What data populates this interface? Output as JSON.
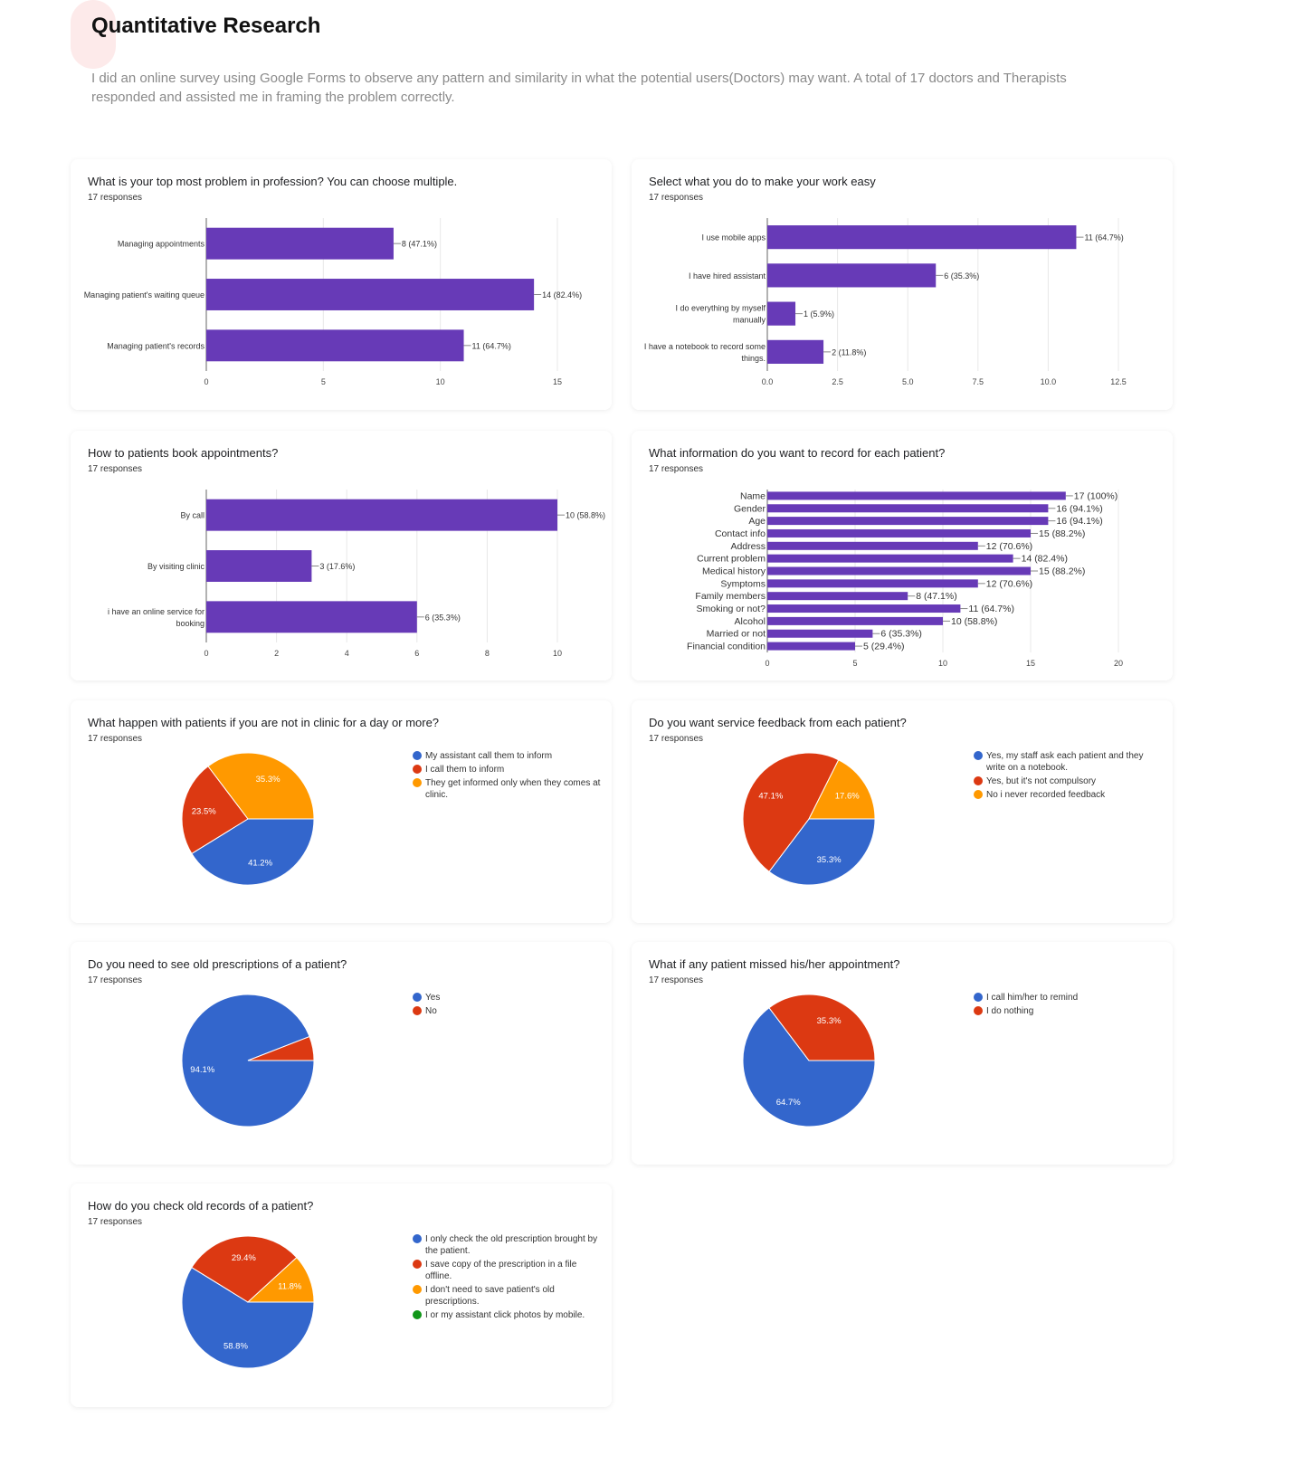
{
  "header": {
    "title": "Quantitative Research",
    "description": "I did an online survey using Google Forms to observe any pattern and similarity in what the potential users(Doctors) may want. A total of 17 doctors and Therapists responded and assisted me in framing the problem correctly."
  },
  "colors": {
    "bar": "#673ab7",
    "blue": "#3366cc",
    "red": "#dc3912",
    "orange": "#ff9900",
    "green": "#109618"
  },
  "chart_data": [
    {
      "type": "bar",
      "title": "What is your top most problem in profession? You can choose multiple.",
      "responses": "17 responses",
      "categories": [
        [
          "Managing appointments"
        ],
        [
          "Managing patient's waiting queue"
        ],
        [
          "Managing patient's records"
        ]
      ],
      "values": [
        8,
        14,
        11
      ],
      "value_labels": [
        "8 (47.1%)",
        "14 (82.4%)",
        "11 (64.7%)"
      ],
      "xlim": [
        0,
        15
      ],
      "ticks": [
        "0",
        "5",
        "10",
        "15"
      ],
      "tick_values": [
        0,
        5,
        10,
        15
      ]
    },
    {
      "type": "bar",
      "title": "Select what you do to make your work easy",
      "responses": "17 responses",
      "categories": [
        [
          "I use mobile apps"
        ],
        [
          "I have hired assistant"
        ],
        [
          "I do everything by myself",
          "manually"
        ],
        [
          "I have a notebook to record some",
          "things."
        ]
      ],
      "values": [
        11,
        6,
        1,
        2
      ],
      "value_labels": [
        "11 (64.7%)",
        "6 (35.3%)",
        "1 (5.9%)",
        "2 (11.8%)"
      ],
      "xlim": [
        0,
        12.5
      ],
      "ticks": [
        "0.0",
        "2.5",
        "5.0",
        "7.5",
        "10.0",
        "12.5"
      ],
      "tick_values": [
        0,
        2.5,
        5,
        7.5,
        10,
        12.5
      ]
    },
    {
      "type": "bar",
      "title": "How to patients book appointments?",
      "responses": "17 responses",
      "categories": [
        [
          "By call"
        ],
        [
          "By visiting clinic"
        ],
        [
          "i have an online service for",
          "booking"
        ]
      ],
      "values": [
        10,
        3,
        6
      ],
      "value_labels": [
        "10 (58.8%)",
        "3 (17.6%)",
        "6 (35.3%)"
      ],
      "xlim": [
        0,
        10
      ],
      "ticks": [
        "0",
        "2",
        "4",
        "6",
        "8",
        "10"
      ],
      "tick_values": [
        0,
        2,
        4,
        6,
        8,
        10
      ]
    },
    {
      "type": "bar",
      "title": "What information do you want to record for each patient?",
      "responses": "17 responses",
      "categories": [
        [
          "Name"
        ],
        [
          "Gender"
        ],
        [
          "Age"
        ],
        [
          "Contact info"
        ],
        [
          "Address"
        ],
        [
          "Current problem"
        ],
        [
          "Medical history"
        ],
        [
          "Symptoms"
        ],
        [
          "Family members"
        ],
        [
          "Smoking or not?"
        ],
        [
          "Alcohol"
        ],
        [
          "Married or not"
        ],
        [
          "Financial condition"
        ]
      ],
      "values": [
        17,
        16,
        16,
        15,
        12,
        14,
        15,
        12,
        8,
        11,
        10,
        6,
        5
      ],
      "value_labels": [
        "17 (100%)",
        "16 (94.1%)",
        "16 (94.1%)",
        "15 (88.2%)",
        "12 (70.6%)",
        "14 (82.4%)",
        "15 (88.2%)",
        "12 (70.6%)",
        "8 (47.1%)",
        "11 (64.7%)",
        "10 (58.8%)",
        "6 (35.3%)",
        "5 (29.4%)"
      ],
      "xlim": [
        0,
        20
      ],
      "ticks": [
        "0",
        "5",
        "10",
        "15",
        "20"
      ],
      "tick_values": [
        0,
        5,
        10,
        15,
        20
      ]
    },
    {
      "type": "pie",
      "title": "What happen with patients if you are not in clinic for a day or more?",
      "responses": "17 responses",
      "labels": [
        "My assistant call them to inform",
        "I call them to inform",
        "They get informed only when they comes at clinic."
      ],
      "values": [
        41.2,
        23.5,
        35.3
      ],
      "value_labels": [
        "41.2%",
        "23.5%",
        "35.3%"
      ],
      "colors": [
        "#3366cc",
        "#dc3912",
        "#ff9900"
      ]
    },
    {
      "type": "pie",
      "title": "Do you want service feedback from each patient?",
      "responses": "17 responses",
      "labels": [
        "Yes, my staff ask each patient and they write on a notebook.",
        "Yes, but it's not compulsory",
        "No i never recorded feedback"
      ],
      "values": [
        35.3,
        47.1,
        17.6
      ],
      "value_labels": [
        "35.3%",
        "47.1%",
        "17.6%"
      ],
      "colors": [
        "#3366cc",
        "#dc3912",
        "#ff9900"
      ]
    },
    {
      "type": "pie",
      "title": "Do you need to see old prescriptions of a patient?",
      "responses": "17 responses",
      "labels": [
        "Yes",
        "No"
      ],
      "values": [
        94.1,
        5.9
      ],
      "value_labels": [
        "94.1%",
        ""
      ],
      "colors": [
        "#3366cc",
        "#dc3912"
      ]
    },
    {
      "type": "pie",
      "title": "What if any patient missed his/her appointment?",
      "responses": "17 responses",
      "labels": [
        "I call him/her to remind",
        "I do nothing"
      ],
      "values": [
        64.7,
        35.3
      ],
      "value_labels": [
        "64.7%",
        "35.3%"
      ],
      "colors": [
        "#3366cc",
        "#dc3912"
      ]
    },
    {
      "type": "pie",
      "title": "How do you check old records of a patient?",
      "responses": "17 responses",
      "labels": [
        "I only check the old prescription brought by the patient.",
        "I save copy of the prescription in a file offline.",
        "I don't need to save patient's old prescriptions.",
        "I or my assistant click photos by mobile."
      ],
      "values": [
        58.8,
        29.4,
        11.8,
        0
      ],
      "value_labels": [
        "58.8%",
        "29.4%",
        "11.8%",
        ""
      ],
      "colors": [
        "#3366cc",
        "#dc3912",
        "#ff9900",
        "#109618"
      ]
    }
  ]
}
